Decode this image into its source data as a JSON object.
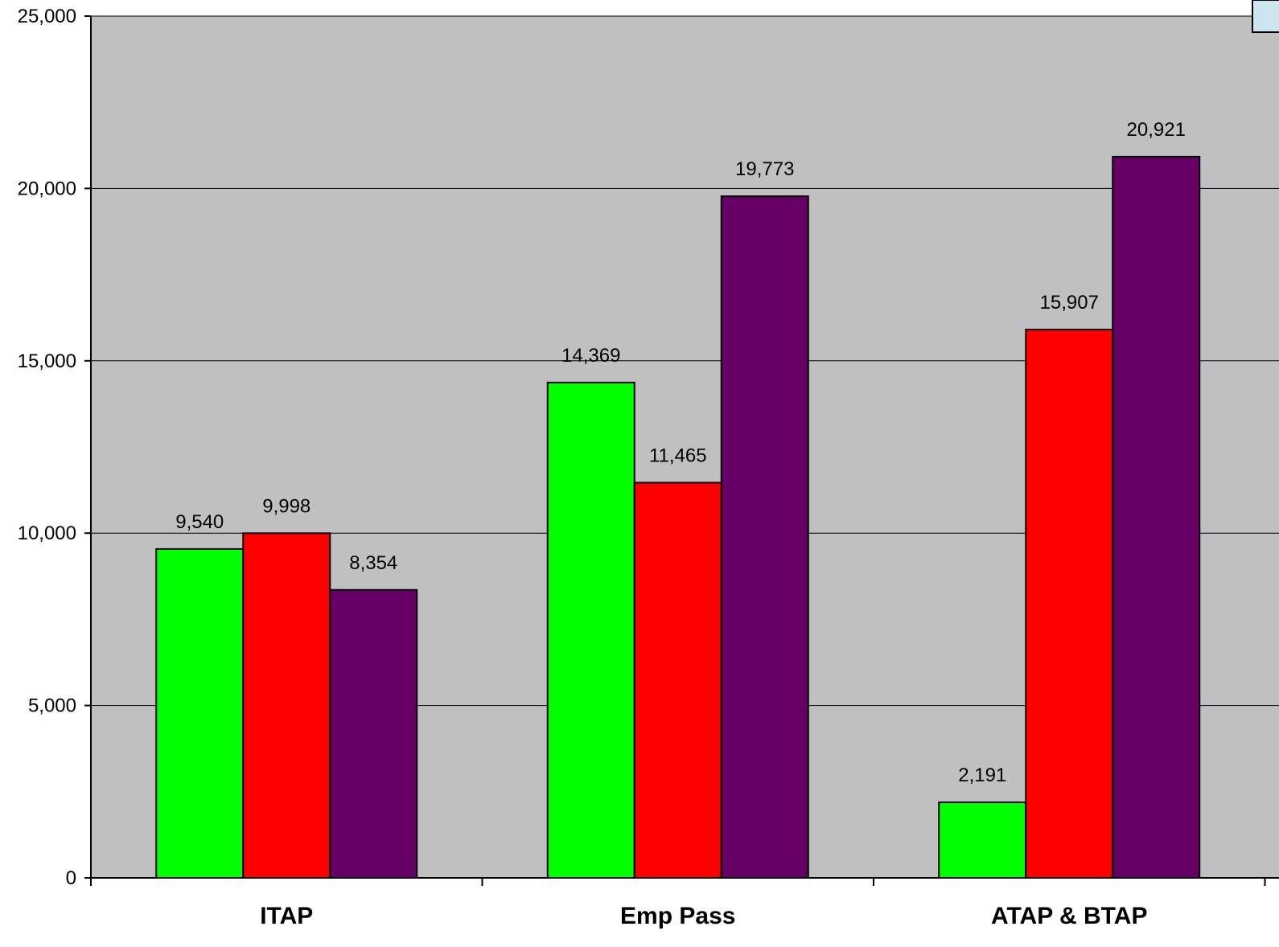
{
  "chart_data": {
    "type": "bar",
    "categories": [
      "ITAP",
      "Emp Pass",
      "ATAP & BTAP"
    ],
    "series": [
      {
        "values": [
          9540,
          14369,
          2191
        ],
        "labels": [
          "9,540",
          "14,369",
          "2,191"
        ],
        "color": "#00ff00"
      },
      {
        "values": [
          9998,
          11465,
          15907
        ],
        "labels": [
          "9,998",
          "11,465",
          "15,907"
        ],
        "color": "#ff0000"
      },
      {
        "values": [
          8354,
          19773,
          20921
        ],
        "labels": [
          "8,354",
          "19,773",
          "20,921"
        ],
        "color": "#660066"
      }
    ],
    "ylim": [
      0,
      25000
    ],
    "yticks": [
      0,
      5000,
      10000,
      15000,
      20000,
      25000
    ],
    "ytick_labels": [
      "0",
      "5,000",
      "10,000",
      "15,000",
      "20,000",
      "25,000"
    ],
    "grid": true,
    "plot_background": "#c0c0c0",
    "legend": "top-right (partially visible edge)",
    "legend_color": "#cce5ee"
  }
}
